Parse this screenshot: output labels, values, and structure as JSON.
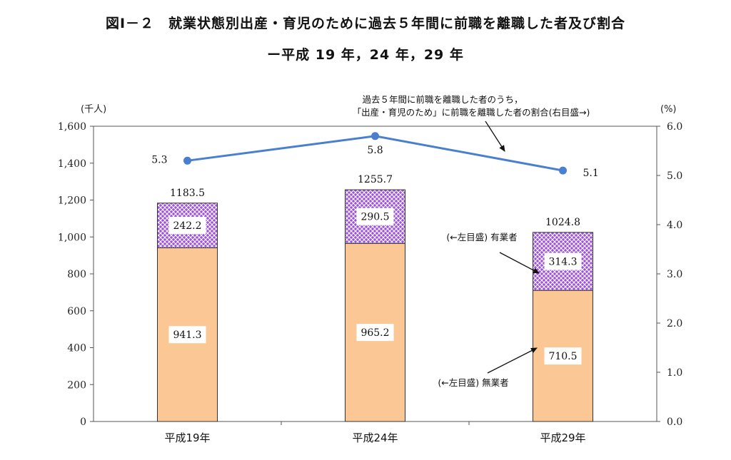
{
  "title": {
    "line1": "図Ⅰ－２　就業状態別出産・育児のために過去５年間に前職を離職した者及び割合",
    "line2": "ー平成 19 年，24 年，29 年"
  },
  "chart_data": {
    "type": "bar",
    "stacked": true,
    "categories": [
      "平成19年",
      "平成24年",
      "平成29年"
    ],
    "series": [
      {
        "name": "(←左目盛) 無業者",
        "values": [
          941.3,
          965.2,
          710.5
        ],
        "color": "#FBC895"
      },
      {
        "name": "(←左目盛) 有業者",
        "values": [
          242.2,
          290.5,
          314.3
        ],
        "color": "#A050E0"
      }
    ],
    "totals": [
      1183.5,
      1255.7,
      1024.8
    ],
    "line_series": {
      "name": "過去５年間に前職を離職した者のうち，「出産・育児のため」に前職を離職した者の割合(右目盛→)",
      "name_lines": [
        "過去５年間に前職を離職した者のうち，",
        "「出産・育児のため」に前職を離職した者の割合(右目盛→)"
      ],
      "values": [
        5.3,
        5.8,
        5.1
      ],
      "color": "#4A7FD0"
    },
    "y_left": {
      "unit": "(千人)",
      "min": 0,
      "max": 1600,
      "ticks": [
        "0",
        "200",
        "400",
        "600",
        "800",
        "1,000",
        "1,200",
        "1,400",
        "1,600"
      ],
      "tick_values": [
        0,
        200,
        400,
        600,
        800,
        1000,
        1200,
        1400,
        1600
      ]
    },
    "y_right": {
      "unit": "(%)",
      "min": 0,
      "max": 6,
      "ticks": [
        "0.0",
        "1.0",
        "2.0",
        "3.0",
        "4.0",
        "5.0",
        "6.0"
      ],
      "tick_values": [
        0,
        1,
        2,
        3,
        4,
        5,
        6
      ]
    },
    "grid": false,
    "legend": "annotations"
  }
}
